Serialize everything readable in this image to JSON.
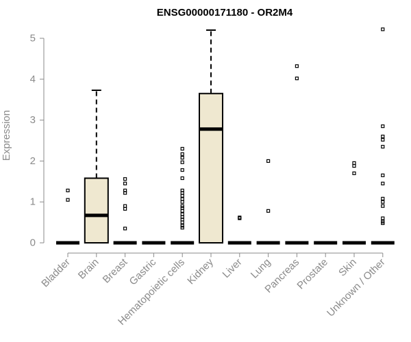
{
  "chart_data": {
    "type": "box",
    "title": "ENSG00000171180 - OR2M4",
    "ylabel": "Expression",
    "xlabel": "",
    "ylim": [
      0,
      5.2
    ],
    "yticks": [
      0,
      1,
      2,
      3,
      4,
      5
    ],
    "box_fill": "#efe8d0",
    "categories": [
      "Bladder",
      "Brain",
      "Breast",
      "Gastric",
      "Hematopoietic cells",
      "Kidney",
      "Liver",
      "Lung",
      "Pancreas",
      "Prostate",
      "Skin",
      "Unknown / Other"
    ],
    "boxes": [
      {
        "q1": 0,
        "median": 0,
        "q3": 0,
        "whisker_low": 0,
        "whisker_high": 0,
        "outliers": [
          1.05,
          1.28
        ]
      },
      {
        "q1": 0,
        "median": 0.67,
        "q3": 1.58,
        "whisker_low": 0,
        "whisker_high": 3.73,
        "outliers": []
      },
      {
        "q1": 0,
        "median": 0,
        "q3": 0,
        "whisker_low": 0,
        "whisker_high": 0,
        "outliers": [
          0.35,
          0.83,
          0.9,
          1.22,
          1.28,
          1.45,
          1.56
        ]
      },
      {
        "q1": 0,
        "median": 0,
        "q3": 0,
        "whisker_low": 0,
        "whisker_high": 0,
        "outliers": []
      },
      {
        "q1": 0,
        "median": 0,
        "q3": 0,
        "whisker_low": 0,
        "whisker_high": 0,
        "outliers": [
          0.37,
          0.42,
          0.5,
          0.57,
          0.63,
          0.7,
          0.78,
          0.85,
          0.9,
          1.0,
          1.07,
          1.15,
          1.22,
          1.28,
          1.58,
          1.78,
          1.97,
          2.08,
          2.17,
          2.3
        ]
      },
      {
        "q1": 0,
        "median": 2.78,
        "q3": 3.65,
        "whisker_low": 0,
        "whisker_high": 5.2,
        "outliers": []
      },
      {
        "q1": 0,
        "median": 0,
        "q3": 0,
        "whisker_low": 0,
        "whisker_high": 0,
        "outliers": [
          0.6,
          0.62
        ]
      },
      {
        "q1": 0,
        "median": 0,
        "q3": 0,
        "whisker_low": 0,
        "whisker_high": 0,
        "outliers": [
          0.78,
          2.0
        ]
      },
      {
        "q1": 0,
        "median": 0,
        "q3": 0,
        "whisker_low": 0,
        "whisker_high": 0,
        "outliers": [
          4.02,
          4.32
        ]
      },
      {
        "q1": 0,
        "median": 0,
        "q3": 0,
        "whisker_low": 0,
        "whisker_high": 0,
        "outliers": []
      },
      {
        "q1": 0,
        "median": 0,
        "q3": 0,
        "whisker_low": 0,
        "whisker_high": 0,
        "outliers": [
          1.7,
          1.88,
          1.95
        ]
      },
      {
        "q1": 0,
        "median": 0,
        "q3": 0,
        "whisker_low": 0,
        "whisker_high": 0,
        "outliers": [
          0.48,
          0.52,
          0.6,
          0.9,
          1.0,
          1.08,
          1.45,
          1.65,
          2.35,
          2.52,
          2.6,
          2.85,
          5.22
        ]
      }
    ]
  }
}
